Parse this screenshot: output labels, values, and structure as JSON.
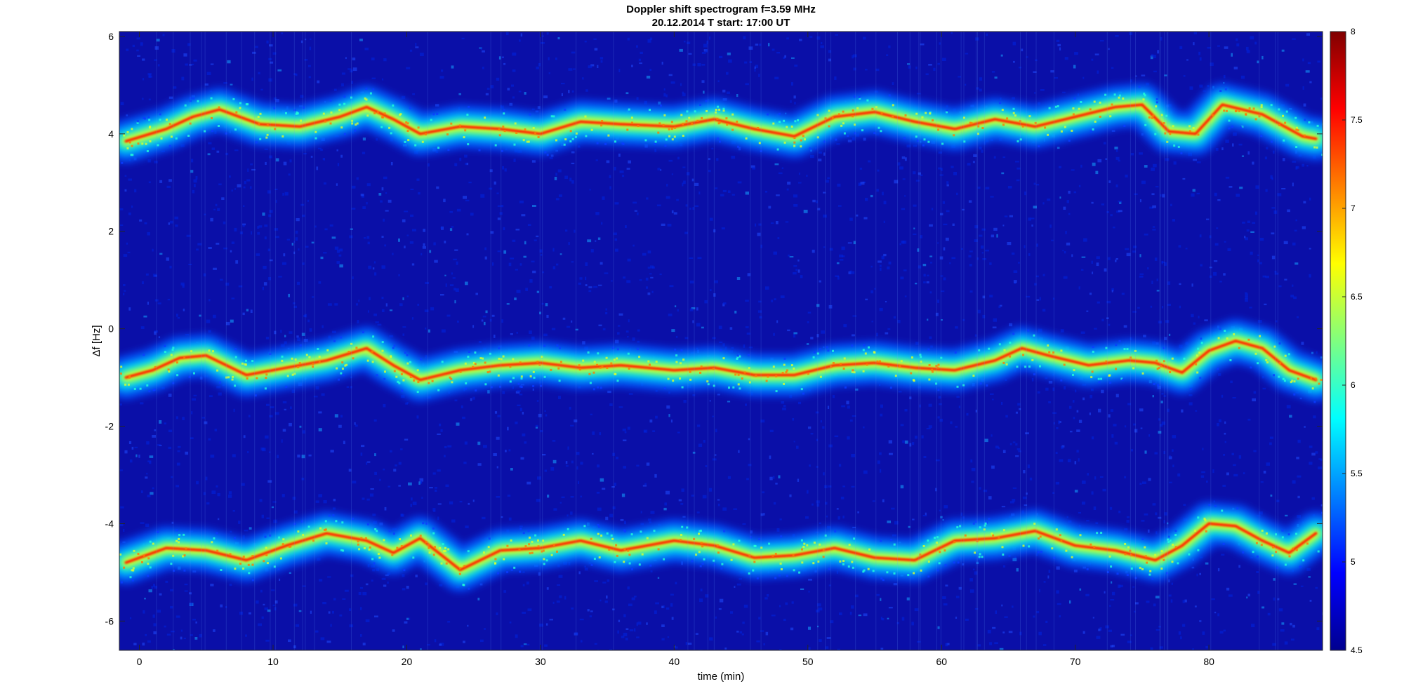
{
  "chart_data": {
    "type": "heatmap",
    "title": "Doppler shift spectrogram f=3.59 MHz",
    "subtitle": "20.12.2014   T start: 17:00 UT",
    "xlabel": "time (min)",
    "ylabel": "Δf [Hz]",
    "xlim": [
      -1.5,
      88.5
    ],
    "ylim": [
      -6.6,
      6.1
    ],
    "xticks": [
      0,
      10,
      20,
      30,
      40,
      50,
      60,
      70,
      80
    ],
    "yticks": [
      -6,
      -4,
      -2,
      0,
      2,
      4,
      6
    ],
    "colorbar": {
      "colormap": "jet",
      "clim": [
        4.5,
        8
      ],
      "ticks": [
        "4.5",
        "5",
        "5.5",
        "6",
        "6.5",
        "7",
        "7.5",
        "8"
      ]
    },
    "series": [
      {
        "x": [
          -1,
          2,
          4,
          6,
          9,
          12,
          15,
          17,
          19,
          21,
          24,
          27,
          30,
          33,
          36,
          40,
          43,
          46,
          49,
          52,
          55,
          58,
          61,
          64,
          67,
          70,
          73,
          75,
          77,
          79,
          81,
          84,
          87,
          88
        ],
        "values": [
          3.85,
          4.1,
          4.35,
          4.5,
          4.2,
          4.15,
          4.35,
          4.55,
          4.3,
          4.0,
          4.15,
          4.1,
          4.0,
          4.25,
          4.2,
          4.15,
          4.3,
          4.1,
          3.95,
          4.35,
          4.45,
          4.25,
          4.1,
          4.3,
          4.15,
          4.35,
          4.55,
          4.6,
          4.05,
          4.0,
          4.6,
          4.4,
          3.95,
          3.9
        ]
      },
      {
        "x": [
          -1,
          1,
          3,
          5,
          8,
          11,
          14,
          17,
          19,
          21,
          24,
          27,
          30,
          33,
          36,
          40,
          43,
          46,
          49,
          52,
          55,
          58,
          61,
          64,
          66,
          68,
          71,
          74,
          76,
          78,
          80,
          82,
          84,
          86,
          88
        ],
        "values": [
          -1.0,
          -0.85,
          -0.6,
          -0.55,
          -0.95,
          -0.8,
          -0.65,
          -0.4,
          -0.75,
          -1.05,
          -0.85,
          -0.75,
          -0.7,
          -0.8,
          -0.75,
          -0.85,
          -0.8,
          -0.95,
          -0.95,
          -0.75,
          -0.7,
          -0.8,
          -0.85,
          -0.65,
          -0.4,
          -0.55,
          -0.75,
          -0.65,
          -0.7,
          -0.9,
          -0.45,
          -0.25,
          -0.4,
          -0.85,
          -1.05
        ]
      },
      {
        "x": [
          -1,
          2,
          5,
          8,
          11,
          14,
          17,
          19,
          21,
          24,
          27,
          30,
          33,
          36,
          40,
          43,
          46,
          49,
          52,
          55,
          58,
          61,
          64,
          67,
          70,
          73,
          76,
          78,
          80,
          82,
          84,
          86,
          88
        ],
        "values": [
          -4.8,
          -4.5,
          -4.55,
          -4.75,
          -4.45,
          -4.2,
          -4.35,
          -4.6,
          -4.3,
          -4.95,
          -4.55,
          -4.5,
          -4.35,
          -4.55,
          -4.35,
          -4.45,
          -4.7,
          -4.65,
          -4.5,
          -4.7,
          -4.75,
          -4.35,
          -4.3,
          -4.15,
          -4.45,
          -4.55,
          -4.75,
          -4.45,
          -4.0,
          -4.05,
          -4.35,
          -4.6,
          -4.2
        ]
      }
    ]
  }
}
